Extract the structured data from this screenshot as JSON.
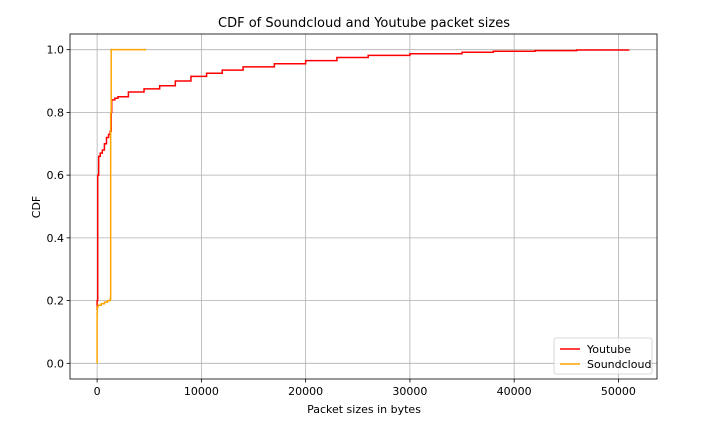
{
  "chart_data": {
    "type": "line",
    "title": "CDF of Soundcloud and Youtube packet sizes",
    "xlabel": "Packet sizes in bytes",
    "ylabel": "CDF",
    "xlim": [
      -2600,
      53700
    ],
    "ylim": [
      -0.05,
      1.05
    ],
    "xticks": [
      0,
      10000,
      20000,
      30000,
      40000,
      50000
    ],
    "yticks": [
      0.0,
      0.2,
      0.4,
      0.6,
      0.8,
      1.0
    ],
    "xtick_labels": [
      "0",
      "10000",
      "20000",
      "30000",
      "40000",
      "50000"
    ],
    "ytick_labels": [
      "0.0",
      "0.2",
      "0.4",
      "0.6",
      "0.8",
      "1.0"
    ],
    "grid": true,
    "legend_position": "bottom-right",
    "series": [
      {
        "name": "Youtube",
        "color": "#ff0000",
        "x": [
          0,
          0,
          60,
          150,
          300,
          500,
          700,
          900,
          1100,
          1250,
          1350,
          1400,
          1700,
          2000,
          3000,
          4500,
          6000,
          7500,
          9000,
          10500,
          12000,
          14000,
          17000,
          20000,
          23000,
          26000,
          30000,
          35000,
          38000,
          42000,
          46000,
          51000
        ],
        "y": [
          0.17,
          0.2,
          0.6,
          0.66,
          0.67,
          0.68,
          0.7,
          0.72,
          0.73,
          0.74,
          0.8,
          0.84,
          0.845,
          0.85,
          0.865,
          0.875,
          0.885,
          0.9,
          0.915,
          0.925,
          0.935,
          0.945,
          0.955,
          0.965,
          0.975,
          0.982,
          0.987,
          0.992,
          0.995,
          0.997,
          0.999,
          1.0
        ]
      },
      {
        "name": "Soundcloud",
        "color": "#ffa500",
        "x": [
          0,
          0,
          20,
          100,
          400,
          700,
          1000,
          1250,
          1300,
          1350,
          1500,
          2500,
          3500,
          4700
        ],
        "y": [
          0.0,
          0.16,
          0.18,
          0.185,
          0.19,
          0.195,
          0.2,
          0.205,
          0.8,
          1.0,
          1.0,
          1.0,
          1.0,
          1.0
        ]
      }
    ]
  }
}
